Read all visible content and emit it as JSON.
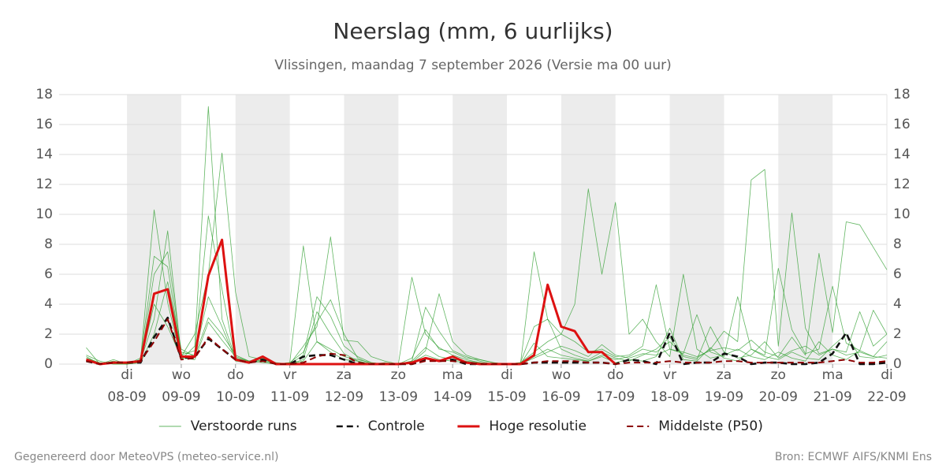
{
  "chart_data": {
    "type": "line",
    "title": "Neerslag (mm, 6 uurlijks)",
    "subtitle": "Vlissingen, maandag  7 september 2026 (Versie ma 00 uur)",
    "footer_left": "Gegenereerd door MeteoVPS (meteo-service.nl)",
    "footer_right": "Bron: ECMWF AIFS/KNMI Ens",
    "x": [
      "2026-09-07T06:00",
      "2026-09-07T12:00",
      "2026-09-07T18:00",
      "2026-09-08T00:00",
      "2026-09-08T06:00",
      "2026-09-08T12:00",
      "2026-09-08T18:00",
      "2026-09-09T00:00",
      "2026-09-09T06:00",
      "2026-09-09T12:00",
      "2026-09-09T18:00",
      "2026-09-10T00:00",
      "2026-09-10T06:00",
      "2026-09-10T12:00",
      "2026-09-10T18:00",
      "2026-09-11T00:00",
      "2026-09-11T06:00",
      "2026-09-11T12:00",
      "2026-09-11T18:00",
      "2026-09-12T00:00",
      "2026-09-12T06:00",
      "2026-09-12T12:00",
      "2026-09-12T18:00",
      "2026-09-13T00:00",
      "2026-09-13T06:00",
      "2026-09-13T12:00",
      "2026-09-13T18:00",
      "2026-09-14T00:00",
      "2026-09-14T06:00",
      "2026-09-14T12:00",
      "2026-09-14T18:00",
      "2026-09-15T00:00",
      "2026-09-15T06:00",
      "2026-09-15T12:00",
      "2026-09-15T18:00",
      "2026-09-16T00:00",
      "2026-09-16T06:00",
      "2026-09-16T12:00",
      "2026-09-16T18:00",
      "2026-09-17T00:00",
      "2026-09-17T06:00",
      "2026-09-17T12:00",
      "2026-09-17T18:00",
      "2026-09-18T00:00",
      "2026-09-18T06:00",
      "2026-09-18T12:00",
      "2026-09-18T18:00",
      "2026-09-19T00:00",
      "2026-09-19T06:00",
      "2026-09-19T12:00",
      "2026-09-19T18:00",
      "2026-09-20T00:00",
      "2026-09-20T06:00",
      "2026-09-20T12:00",
      "2026-09-20T18:00",
      "2026-09-21T00:00",
      "2026-09-21T06:00",
      "2026-09-21T12:00",
      "2026-09-21T18:00",
      "2026-09-22T00:00"
    ],
    "xlim": [
      "2026-09-06T18:00",
      "2026-09-22T00:00"
    ],
    "xticks": [
      {
        "value": "2026-09-08T00:00",
        "label": [
          "di",
          "08-09"
        ]
      },
      {
        "value": "2026-09-09T00:00",
        "label": [
          "wo",
          "09-09"
        ]
      },
      {
        "value": "2026-09-10T00:00",
        "label": [
          "do",
          "10-09"
        ]
      },
      {
        "value": "2026-09-11T00:00",
        "label": [
          "vr",
          "11-09"
        ]
      },
      {
        "value": "2026-09-12T00:00",
        "label": [
          "za",
          "12-09"
        ]
      },
      {
        "value": "2026-09-13T00:00",
        "label": [
          "zo",
          "13-09"
        ]
      },
      {
        "value": "2026-09-14T00:00",
        "label": [
          "ma",
          "14-09"
        ]
      },
      {
        "value": "2026-09-15T00:00",
        "label": [
          "di",
          "15-09"
        ]
      },
      {
        "value": "2026-09-16T00:00",
        "label": [
          "wo",
          "16-09"
        ]
      },
      {
        "value": "2026-09-17T00:00",
        "label": [
          "do",
          "17-09"
        ]
      },
      {
        "value": "2026-09-18T00:00",
        "label": [
          "vr",
          "18-09"
        ]
      },
      {
        "value": "2026-09-19T00:00",
        "label": [
          "za",
          "19-09"
        ]
      },
      {
        "value": "2026-09-20T00:00",
        "label": [
          "zo",
          "20-09"
        ]
      },
      {
        "value": "2026-09-21T00:00",
        "label": [
          "ma",
          "21-09"
        ]
      },
      {
        "value": "2026-09-22T00:00",
        "label": [
          "di",
          "22-09"
        ]
      }
    ],
    "ylim": [
      0,
      18
    ],
    "yticks": [
      0,
      2,
      4,
      6,
      8,
      10,
      12,
      14,
      16,
      18
    ],
    "grid": true,
    "legend": "bottom",
    "series": [
      {
        "name": "Verstoorde runs",
        "color": "#2e9e2e",
        "line_style": "solid",
        "line_width": 0.8,
        "members": [
          [
            0.5,
            0,
            0.2,
            0,
            0.3,
            10.3,
            4.1,
            0.3,
            1.2,
            17.2,
            3.0,
            0.4,
            0.2,
            0.5,
            0,
            0.1,
            7.9,
            1.5,
            0.8,
            0.3,
            0.2,
            0,
            0.1,
            0,
            0.2,
            1.1,
            0.5,
            0.3,
            0.2,
            0.1,
            0,
            0,
            0,
            0.5,
            1.0,
            0.6,
            0.4,
            0.2,
            0.5,
            0.1,
            0.3,
            0.2,
            0.5,
            2.4,
            0.3,
            0.2,
            1.1,
            0.4,
            0.2,
            1.0,
            0.5,
            0.3,
            0.8,
            0.4,
            0.3,
            1.2,
            2.0,
            0.5,
            0.4,
            0.6
          ],
          [
            1.1,
            0,
            0.3,
            0,
            0.2,
            3.0,
            8.9,
            0.5,
            2.0,
            6.0,
            14.1,
            4.8,
            0.5,
            0.3,
            0.1,
            0,
            1.2,
            2.5,
            8.5,
            1.6,
            1.5,
            0.5,
            0.2,
            0,
            0.4,
            2.3,
            1.0,
            0.8,
            0.4,
            0.3,
            0.1,
            0,
            0,
            7.5,
            3.0,
            1.0,
            0.6,
            0.3,
            0.8,
            0.4,
            0.2,
            0.6,
            1.0,
            1.8,
            0.5,
            0.3,
            2.5,
            0.8,
            0.4,
            0.6,
            1.5,
            0.4,
            0.9,
            1.2,
            0.6,
            1.0,
            0.8,
            3.5,
            1.2,
            2.0
          ],
          [
            0.4,
            0.1,
            0,
            0,
            0.1,
            2.0,
            5.5,
            1.0,
            0.5,
            3.1,
            2.0,
            0.6,
            0.2,
            0.1,
            0,
            0,
            0.3,
            3.5,
            2.0,
            0.7,
            0.2,
            0,
            0,
            0,
            0.1,
            0.6,
            0.3,
            0.2,
            0.1,
            0,
            0,
            0,
            0.1,
            0.8,
            1.5,
            2.0,
            4.0,
            11.7,
            6.0,
            10.8,
            2.0,
            3.0,
            1.5,
            0.5,
            6.0,
            1.0,
            0.4,
            0.6,
            1.0,
            0.5,
            0.3,
            0.8,
            0.4,
            0.2,
            1.5,
            0.6,
            0.3,
            0.9,
            0.5,
            0.4
          ],
          [
            0.3,
            0,
            0.1,
            0,
            0.2,
            6.0,
            7.5,
            0.8,
            0.6,
            4.5,
            2.5,
            0.3,
            0.1,
            0.4,
            0,
            0,
            0.6,
            4.5,
            3.2,
            1.2,
            0.5,
            0.1,
            0,
            0,
            0.2,
            3.8,
            2.2,
            0.9,
            0.5,
            0.2,
            0,
            0,
            0,
            1.4,
            0.5,
            0.4,
            0.3,
            0.2,
            0.6,
            0.3,
            0.5,
            1.0,
            0.8,
            1.5,
            0.6,
            0.4,
            1.0,
            2.2,
            1.5,
            12.3,
            13.0,
            1.2,
            10.1,
            2.4,
            0.7,
            1.0,
            0.6,
            0.8,
            0.5,
            1.5
          ],
          [
            0.6,
            0.2,
            0,
            0,
            0.1,
            4.0,
            2.5,
            0.4,
            0.3,
            2.8,
            1.6,
            0.5,
            0.2,
            0.2,
            0,
            0,
            0.2,
            1.5,
            1.0,
            0.5,
            0.3,
            0.1,
            0,
            0,
            0.1,
            0.9,
            4.7,
            1.5,
            0.6,
            0.3,
            0.1,
            0,
            0,
            0.4,
            0.8,
            1.2,
            0.9,
            0.5,
            1.3,
            0.6,
            0.4,
            0.7,
            0.6,
            1.0,
            0.8,
            0.5,
            0.9,
            1.1,
            0.9,
            1.6,
            0.8,
            0.5,
            1.8,
            0.6,
            7.4,
            2.1,
            9.5,
            9.3,
            7.8,
            6.3
          ],
          [
            0.2,
            0,
            0.1,
            0,
            0.4,
            7.2,
            6.5,
            0.6,
            0.9,
            9.9,
            5.0,
            0.2,
            0.1,
            0.3,
            0,
            0.1,
            0.8,
            2.8,
            4.3,
            2.0,
            0.4,
            0,
            0,
            0,
            5.8,
            2.0,
            1.1,
            0.6,
            0.3,
            0.1,
            0,
            0,
            0.1,
            2.5,
            3.0,
            2.0,
            1.5,
            0.8,
            1.0,
            0.5,
            0.6,
            1.2,
            5.3,
            1.0,
            0.7,
            3.3,
            0.8,
            0.5,
            4.5,
            1.0,
            0.6,
            6.4,
            2.3,
            0.7,
            1.0,
            5.2,
            1.4,
            0.9,
            3.6,
            2.0
          ]
        ]
      },
      {
        "name": "Controle",
        "color": "#111111",
        "line_style": "dashed",
        "line_width": 2.6,
        "values": [
          0.2,
          0,
          0.1,
          0.1,
          0.1,
          1.8,
          3.1,
          0.4,
          0.5,
          1.7,
          1.0,
          0.3,
          0.1,
          0.3,
          0,
          0,
          0.5,
          0.6,
          0.6,
          0.3,
          0,
          0,
          0,
          0,
          0,
          0.3,
          0.2,
          0.3,
          0,
          0,
          0,
          0,
          0,
          0.1,
          0.1,
          0.1,
          0.1,
          0.1,
          0.1,
          0,
          0.3,
          0.2,
          0,
          2.1,
          0,
          0.1,
          0.1,
          0.7,
          0.5,
          0,
          0.1,
          0.1,
          0,
          0,
          0.1,
          0.7,
          2.1,
          0,
          0,
          0.1
        ]
      },
      {
        "name": "Hoge resolutie",
        "color": "#dd1111",
        "line_style": "solid",
        "line_width": 3,
        "values": [
          0.3,
          0,
          0.1,
          0.1,
          0.2,
          4.7,
          5.0,
          0.5,
          0.5,
          5.9,
          8.3,
          0.3,
          0.1,
          0.5,
          0,
          0,
          0,
          0,
          0,
          0,
          0,
          0,
          0,
          0,
          0.1,
          0.4,
          0.2,
          0.5,
          0.1,
          0,
          0,
          0,
          0,
          0.6,
          5.3,
          2.5,
          2.2,
          0.8,
          0.8,
          0,
          null,
          null,
          null,
          null,
          null,
          null,
          null,
          null,
          null,
          null,
          null,
          null,
          null,
          null,
          null,
          null,
          null,
          null,
          null,
          null
        ]
      },
      {
        "name": "Middelste (P50)",
        "color": "#8b0000",
        "line_style": "dashed",
        "line_width": 2,
        "values": [
          0.2,
          0,
          0.1,
          0.1,
          0.2,
          1.5,
          3.0,
          0.3,
          0.4,
          1.8,
          1.0,
          0.3,
          0.1,
          0.2,
          0,
          0,
          0.1,
          0.5,
          0.7,
          0.6,
          0.1,
          0,
          0,
          0,
          0,
          0.2,
          0.2,
          0.2,
          0.1,
          0,
          0,
          0,
          0,
          0.1,
          0.2,
          0.2,
          0.2,
          0.1,
          0.1,
          0,
          0.1,
          0.1,
          0.1,
          0.2,
          0.1,
          0.1,
          0.1,
          0.2,
          0.2,
          0.1,
          0.1,
          0.1,
          0.1,
          0.1,
          0.1,
          0.2,
          0.3,
          0.1,
          0.1,
          0.2
        ]
      }
    ]
  }
}
